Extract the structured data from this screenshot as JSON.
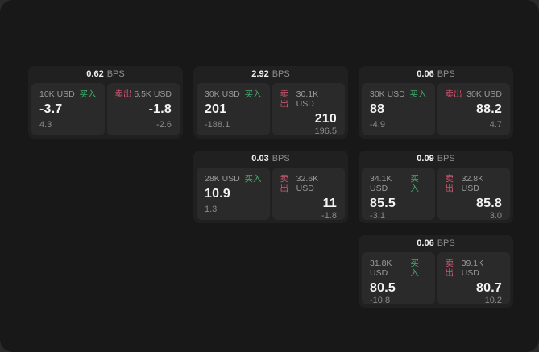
{
  "labels": {
    "bps": "BPS",
    "buy": "买入",
    "sell": "卖出"
  },
  "colors": {
    "window_bg": "#181818",
    "outer_bg": "#2a2a2a",
    "card_bg": "#202020",
    "pane_bg": "#2a2a2a",
    "buy_accent": "#43ab6f",
    "sell_accent": "#d05670",
    "value_text": "#f4f4f4",
    "muted_text": "#9a9a9a"
  },
  "cards": [
    {
      "bps": "0.62",
      "buy": {
        "amount": "10K USD",
        "value": "-3.7",
        "sub": "4.3"
      },
      "sell": {
        "amount": "5.5K USD",
        "value": "-1.8",
        "sub": "-2.6"
      }
    },
    {
      "bps": "2.92",
      "buy": {
        "amount": "30K USD",
        "value": "201",
        "sub": "-188.1"
      },
      "sell": {
        "amount": "30.1K USD",
        "value": "210",
        "sub": "196.5"
      }
    },
    {
      "bps": "0.06",
      "buy": {
        "amount": "30K USD",
        "value": "88",
        "sub": "-4.9"
      },
      "sell": {
        "amount": "30K USD",
        "value": "88.2",
        "sub": "4.7"
      }
    },
    {
      "bps": "0.03",
      "buy": {
        "amount": "28K USD",
        "value": "10.9",
        "sub": "1.3"
      },
      "sell": {
        "amount": "32.6K USD",
        "value": "11",
        "sub": "-1.8"
      }
    },
    {
      "bps": "0.09",
      "buy": {
        "amount": "34.1K USD",
        "value": "85.5",
        "sub": "-3.1"
      },
      "sell": {
        "amount": "32.8K USD",
        "value": "85.8",
        "sub": "3.0"
      }
    },
    {
      "bps": "0.06",
      "buy": {
        "amount": "31.8K USD",
        "value": "80.5",
        "sub": "-10.8"
      },
      "sell": {
        "amount": "39.1K USD",
        "value": "80.7",
        "sub": "10.2"
      }
    }
  ]
}
